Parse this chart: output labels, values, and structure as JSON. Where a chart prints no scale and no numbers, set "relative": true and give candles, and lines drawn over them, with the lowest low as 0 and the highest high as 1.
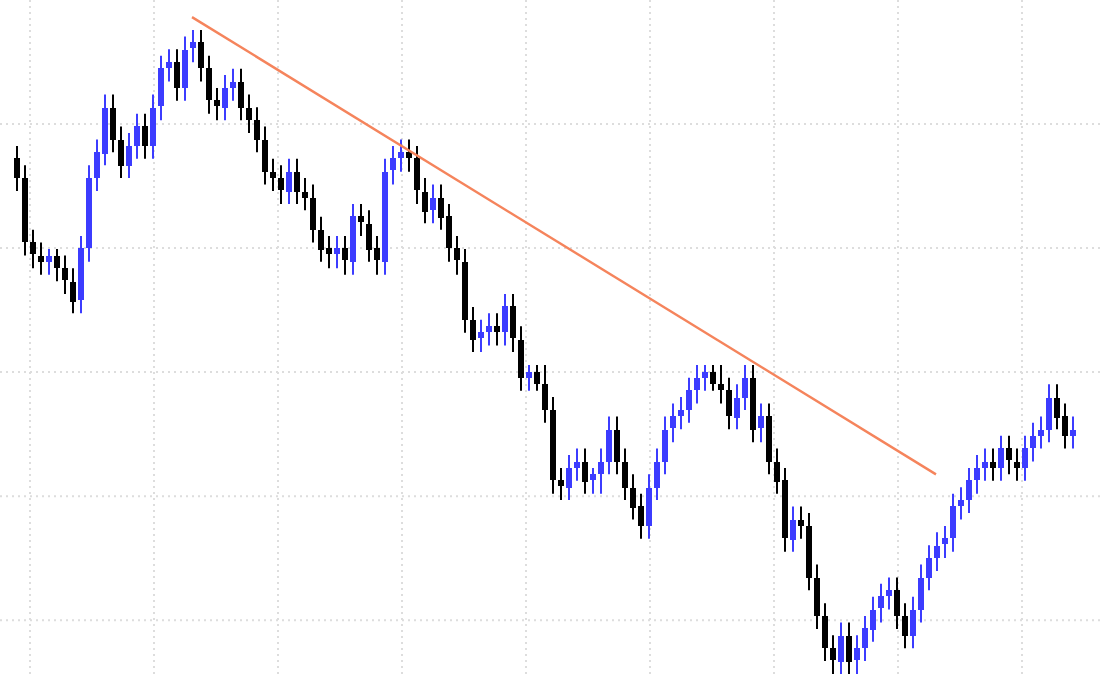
{
  "chart_data": {
    "type": "candlestick",
    "relative": true,
    "grid": true,
    "categories": [
      null,
      null,
      null,
      null,
      null,
      null,
      null,
      null,
      null,
      null,
      null,
      null,
      null,
      null,
      null,
      null,
      null,
      null,
      null,
      null,
      null,
      null,
      null,
      null,
      null,
      null,
      null,
      null,
      null,
      null,
      null,
      null,
      null,
      null,
      null,
      null,
      null,
      null,
      null,
      null,
      null,
      null,
      null,
      null,
      null,
      null,
      null,
      null,
      null,
      null,
      null,
      null,
      null,
      null,
      null,
      null,
      null,
      null,
      null,
      null,
      null,
      null,
      null,
      null,
      null,
      null,
      null,
      null,
      null,
      null,
      null,
      null,
      null,
      null,
      null,
      null,
      null,
      null,
      null,
      null,
      null,
      null,
      null,
      null,
      null,
      null,
      null,
      null,
      null,
      null,
      null,
      null,
      null,
      null,
      null,
      null,
      null,
      null,
      null,
      null,
      null,
      null,
      null,
      null,
      null,
      null,
      null,
      null,
      null,
      null,
      null,
      null,
      null,
      null,
      null,
      null,
      null,
      null,
      null,
      null,
      null,
      null,
      null,
      null,
      null,
      null,
      null,
      null,
      null,
      null,
      null,
      null,
      null
    ],
    "ohlc": [
      [
        0.8,
        0.82,
        0.75,
        0.77
      ],
      [
        0.77,
        0.79,
        0.65,
        0.67
      ],
      [
        0.67,
        0.69,
        0.63,
        0.65
      ],
      [
        0.65,
        0.67,
        0.62,
        0.64
      ],
      [
        0.64,
        0.66,
        0.62,
        0.65
      ],
      [
        0.65,
        0.66,
        0.61,
        0.63
      ],
      [
        0.63,
        0.65,
        0.59,
        0.61
      ],
      [
        0.61,
        0.63,
        0.56,
        0.58
      ],
      [
        0.58,
        0.68,
        0.56,
        0.66
      ],
      [
        0.66,
        0.79,
        0.64,
        0.77
      ],
      [
        0.77,
        0.83,
        0.75,
        0.81
      ],
      [
        0.81,
        0.9,
        0.79,
        0.88
      ],
      [
        0.88,
        0.9,
        0.81,
        0.83
      ],
      [
        0.83,
        0.85,
        0.77,
        0.79
      ],
      [
        0.79,
        0.84,
        0.77,
        0.82
      ],
      [
        0.82,
        0.87,
        0.8,
        0.85
      ],
      [
        0.85,
        0.87,
        0.8,
        0.82
      ],
      [
        0.82,
        0.9,
        0.8,
        0.88
      ],
      [
        0.88,
        0.96,
        0.86,
        0.94
      ],
      [
        0.94,
        0.97,
        0.92,
        0.95
      ],
      [
        0.95,
        0.97,
        0.89,
        0.91
      ],
      [
        0.91,
        0.99,
        0.89,
        0.97
      ],
      [
        0.97,
        1.0,
        0.95,
        0.98
      ],
      [
        0.98,
        1.0,
        0.92,
        0.94
      ],
      [
        0.94,
        0.96,
        0.87,
        0.89
      ],
      [
        0.89,
        0.91,
        0.86,
        0.88
      ],
      [
        0.88,
        0.93,
        0.86,
        0.91
      ],
      [
        0.91,
        0.94,
        0.89,
        0.92
      ],
      [
        0.92,
        0.94,
        0.86,
        0.88
      ],
      [
        0.88,
        0.9,
        0.84,
        0.86
      ],
      [
        0.86,
        0.88,
        0.81,
        0.83
      ],
      [
        0.83,
        0.85,
        0.76,
        0.78
      ],
      [
        0.78,
        0.8,
        0.75,
        0.77
      ],
      [
        0.77,
        0.79,
        0.73,
        0.75
      ],
      [
        0.75,
        0.8,
        0.73,
        0.78
      ],
      [
        0.78,
        0.8,
        0.73,
        0.75
      ],
      [
        0.75,
        0.77,
        0.72,
        0.74
      ],
      [
        0.74,
        0.76,
        0.67,
        0.69
      ],
      [
        0.69,
        0.71,
        0.64,
        0.66
      ],
      [
        0.66,
        0.68,
        0.63,
        0.65
      ],
      [
        0.65,
        0.68,
        0.63,
        0.66
      ],
      [
        0.66,
        0.68,
        0.62,
        0.64
      ],
      [
        0.64,
        0.73,
        0.62,
        0.71
      ],
      [
        0.71,
        0.73,
        0.68,
        0.7
      ],
      [
        0.7,
        0.72,
        0.64,
        0.66
      ],
      [
        0.66,
        0.68,
        0.62,
        0.64
      ],
      [
        0.64,
        0.8,
        0.62,
        0.78
      ],
      [
        0.78,
        0.82,
        0.76,
        0.8
      ],
      [
        0.8,
        0.83,
        0.78,
        0.81
      ],
      [
        0.81,
        0.83,
        0.78,
        0.8
      ],
      [
        0.8,
        0.82,
        0.73,
        0.75
      ],
      [
        0.75,
        0.77,
        0.7,
        0.72
      ],
      [
        0.72,
        0.76,
        0.7,
        0.74
      ],
      [
        0.74,
        0.76,
        0.69,
        0.71
      ],
      [
        0.71,
        0.73,
        0.64,
        0.66
      ],
      [
        0.66,
        0.68,
        0.62,
        0.64
      ],
      [
        0.64,
        0.66,
        0.53,
        0.55
      ],
      [
        0.55,
        0.57,
        0.5,
        0.52
      ],
      [
        0.52,
        0.55,
        0.5,
        0.53
      ],
      [
        0.53,
        0.56,
        0.51,
        0.54
      ],
      [
        0.54,
        0.56,
        0.51,
        0.53
      ],
      [
        0.53,
        0.59,
        0.51,
        0.57
      ],
      [
        0.57,
        0.59,
        0.5,
        0.52
      ],
      [
        0.52,
        0.54,
        0.44,
        0.46
      ],
      [
        0.46,
        0.48,
        0.44,
        0.47
      ],
      [
        0.47,
        0.48,
        0.44,
        0.45
      ],
      [
        0.45,
        0.48,
        0.39,
        0.41
      ],
      [
        0.41,
        0.43,
        0.28,
        0.3
      ],
      [
        0.3,
        0.32,
        0.27,
        0.29
      ],
      [
        0.29,
        0.34,
        0.27,
        0.32
      ],
      [
        0.32,
        0.35,
        0.3,
        0.33
      ],
      [
        0.33,
        0.35,
        0.28,
        0.3
      ],
      [
        0.3,
        0.32,
        0.28,
        0.31
      ],
      [
        0.31,
        0.35,
        0.28,
        0.33
      ],
      [
        0.33,
        0.4,
        0.31,
        0.38
      ],
      [
        0.38,
        0.4,
        0.31,
        0.33
      ],
      [
        0.33,
        0.35,
        0.27,
        0.29
      ],
      [
        0.29,
        0.31,
        0.24,
        0.26
      ],
      [
        0.26,
        0.28,
        0.21,
        0.23
      ],
      [
        0.23,
        0.31,
        0.21,
        0.29
      ],
      [
        0.29,
        0.35,
        0.27,
        0.33
      ],
      [
        0.33,
        0.4,
        0.31,
        0.38
      ],
      [
        0.38,
        0.42,
        0.36,
        0.4
      ],
      [
        0.4,
        0.43,
        0.38,
        0.41
      ],
      [
        0.41,
        0.46,
        0.39,
        0.44
      ],
      [
        0.44,
        0.48,
        0.42,
        0.46
      ],
      [
        0.46,
        0.48,
        0.44,
        0.47
      ],
      [
        0.47,
        0.48,
        0.44,
        0.45
      ],
      [
        0.45,
        0.48,
        0.42,
        0.44
      ],
      [
        0.44,
        0.46,
        0.38,
        0.4
      ],
      [
        0.4,
        0.45,
        0.38,
        0.43
      ],
      [
        0.43,
        0.48,
        0.41,
        0.46
      ],
      [
        0.46,
        0.48,
        0.36,
        0.38
      ],
      [
        0.38,
        0.42,
        0.36,
        0.4
      ],
      [
        0.4,
        0.42,
        0.31,
        0.33
      ],
      [
        0.33,
        0.35,
        0.28,
        0.3
      ],
      [
        0.3,
        0.32,
        0.19,
        0.21
      ],
      [
        0.21,
        0.26,
        0.19,
        0.24
      ],
      [
        0.24,
        0.26,
        0.21,
        0.23
      ],
      [
        0.23,
        0.25,
        0.13,
        0.15
      ],
      [
        0.15,
        0.17,
        0.07,
        0.09
      ],
      [
        0.09,
        0.11,
        0.02,
        0.04
      ],
      [
        0.04,
        0.06,
        0.0,
        0.02
      ],
      [
        0.02,
        0.08,
        0.0,
        0.06
      ],
      [
        0.06,
        0.08,
        0.0,
        0.02
      ],
      [
        0.02,
        0.06,
        0.0,
        0.04
      ],
      [
        0.04,
        0.09,
        0.02,
        0.07
      ],
      [
        0.07,
        0.12,
        0.05,
        0.1
      ],
      [
        0.1,
        0.14,
        0.08,
        0.12
      ],
      [
        0.12,
        0.15,
        0.1,
        0.13
      ],
      [
        0.13,
        0.15,
        0.07,
        0.09
      ],
      [
        0.09,
        0.11,
        0.04,
        0.06
      ],
      [
        0.06,
        0.12,
        0.04,
        0.1
      ],
      [
        0.1,
        0.17,
        0.08,
        0.15
      ],
      [
        0.15,
        0.2,
        0.13,
        0.18
      ],
      [
        0.18,
        0.22,
        0.16,
        0.2
      ],
      [
        0.2,
        0.23,
        0.18,
        0.21
      ],
      [
        0.21,
        0.28,
        0.19,
        0.26
      ],
      [
        0.26,
        0.29,
        0.24,
        0.27
      ],
      [
        0.27,
        0.32,
        0.25,
        0.3
      ],
      [
        0.3,
        0.34,
        0.28,
        0.32
      ],
      [
        0.32,
        0.35,
        0.3,
        0.33
      ],
      [
        0.33,
        0.35,
        0.3,
        0.32
      ],
      [
        0.32,
        0.37,
        0.3,
        0.35
      ],
      [
        0.35,
        0.37,
        0.31,
        0.33
      ],
      [
        0.33,
        0.35,
        0.3,
        0.32
      ],
      [
        0.32,
        0.37,
        0.3,
        0.35
      ],
      [
        0.35,
        0.39,
        0.33,
        0.37
      ],
      [
        0.37,
        0.4,
        0.35,
        0.38
      ],
      [
        0.38,
        0.45,
        0.36,
        0.43
      ],
      [
        0.43,
        0.45,
        0.38,
        0.4
      ],
      [
        0.4,
        0.42,
        0.35,
        0.37
      ],
      [
        0.37,
        0.4,
        0.35,
        0.38
      ]
    ],
    "colors": [
      "#000000",
      "#000000",
      "#000000",
      "#000000",
      "#3c3cff",
      "#000000",
      "#000000",
      "#000000",
      "#3c3cff",
      "#3c3cff",
      "#3c3cff",
      "#3c3cff",
      "#000000",
      "#000000",
      "#3c3cff",
      "#3c3cff",
      "#000000",
      "#3c3cff",
      "#3c3cff",
      "#3c3cff",
      "#000000",
      "#3c3cff",
      "#3c3cff",
      "#000000",
      "#000000",
      "#000000",
      "#3c3cff",
      "#3c3cff",
      "#000000",
      "#000000",
      "#000000",
      "#000000",
      "#000000",
      "#000000",
      "#3c3cff",
      "#000000",
      "#000000",
      "#000000",
      "#000000",
      "#000000",
      "#3c3cff",
      "#000000",
      "#3c3cff",
      "#000000",
      "#000000",
      "#000000",
      "#3c3cff",
      "#3c3cff",
      "#3c3cff",
      "#000000",
      "#000000",
      "#000000",
      "#3c3cff",
      "#000000",
      "#000000",
      "#000000",
      "#000000",
      "#000000",
      "#3c3cff",
      "#3c3cff",
      "#000000",
      "#3c3cff",
      "#000000",
      "#000000",
      "#3c3cff",
      "#000000",
      "#000000",
      "#000000",
      "#000000",
      "#3c3cff",
      "#3c3cff",
      "#000000",
      "#3c3cff",
      "#3c3cff",
      "#3c3cff",
      "#000000",
      "#000000",
      "#000000",
      "#000000",
      "#3c3cff",
      "#3c3cff",
      "#3c3cff",
      "#3c3cff",
      "#3c3cff",
      "#3c3cff",
      "#3c3cff",
      "#3c3cff",
      "#000000",
      "#000000",
      "#000000",
      "#3c3cff",
      "#3c3cff",
      "#000000",
      "#3c3cff",
      "#000000",
      "#000000",
      "#000000",
      "#3c3cff",
      "#000000",
      "#000000",
      "#000000",
      "#000000",
      "#000000",
      "#3c3cff",
      "#000000",
      "#3c3cff",
      "#3c3cff",
      "#3c3cff",
      "#3c3cff",
      "#3c3cff",
      "#000000",
      "#000000",
      "#3c3cff",
      "#3c3cff",
      "#3c3cff",
      "#3c3cff",
      "#3c3cff",
      "#3c3cff",
      "#3c3cff",
      "#3c3cff",
      "#3c3cff",
      "#3c3cff",
      "#000000",
      "#3c3cff",
      "#000000",
      "#000000",
      "#3c3cff",
      "#3c3cff",
      "#3c3cff",
      "#3c3cff",
      "#000000",
      "#000000",
      "#3c3cff"
    ],
    "series": [
      {
        "type": "line",
        "color": "#f5845c",
        "values": [
          null,
          null,
          null,
          null,
          null,
          null,
          null,
          null,
          null,
          null,
          null,
          null,
          null,
          null,
          null,
          null,
          null,
          null,
          null,
          null,
          null,
          null,
          1.02,
          null,
          null,
          null,
          null,
          null,
          null,
          null,
          null,
          null,
          null,
          null,
          null,
          null,
          null,
          null,
          null,
          null,
          null,
          null,
          null,
          null,
          null,
          null,
          null,
          null,
          null,
          null,
          null,
          null,
          null,
          null,
          null,
          null,
          null,
          null,
          null,
          null,
          null,
          null,
          null,
          null,
          null,
          null,
          null,
          null,
          null,
          null,
          null,
          null,
          null,
          null,
          null,
          null,
          null,
          null,
          null,
          null,
          null,
          null,
          null,
          null,
          null,
          null,
          null,
          null,
          null,
          null,
          null,
          null,
          null,
          null,
          null,
          null,
          null,
          null,
          null,
          null,
          null,
          null,
          null,
          null,
          null,
          null,
          null,
          null,
          null,
          null,
          null,
          null,
          null,
          null,
          null,
          0.31,
          null,
          null,
          null,
          null,
          null,
          null,
          null,
          null,
          null,
          null,
          null,
          null,
          null,
          null,
          null,
          null,
          null
        ]
      }
    ]
  }
}
